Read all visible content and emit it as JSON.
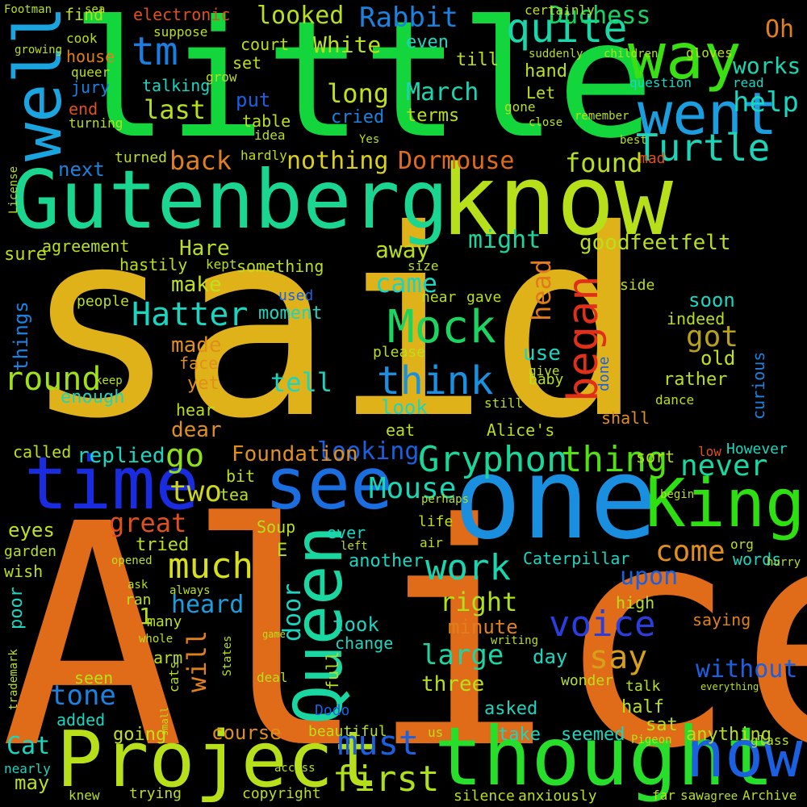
{
  "background": "#000000",
  "words": [
    {
      "text": "said",
      "color": "#e0b21a"
    },
    {
      "text": "Alice",
      "color": "#e06b18"
    },
    {
      "text": "little",
      "color": "#12d63c"
    },
    {
      "text": "one",
      "color": "#1a8fe0"
    },
    {
      "text": "know",
      "color": "#b8e01a"
    },
    {
      "text": "Gutenberg",
      "color": "#1ad690"
    },
    {
      "text": "thought",
      "color": "#27de2a"
    },
    {
      "text": "Project",
      "color": "#b8e01a"
    },
    {
      "text": "time",
      "color": "#1a2ce0"
    },
    {
      "text": "Queen",
      "color": "#1ad6a0"
    },
    {
      "text": "King",
      "color": "#2ee012"
    },
    {
      "text": "see",
      "color": "#1a6ee0"
    },
    {
      "text": "well",
      "color": "#1aa5e0"
    },
    {
      "text": "went",
      "color": "#1a9ee0"
    },
    {
      "text": "way",
      "color": "#3ae012"
    },
    {
      "text": "now",
      "color": "#1a60e0"
    },
    {
      "text": "Mock",
      "color": "#1ad660"
    },
    {
      "text": "began",
      "color": "#e0301a"
    },
    {
      "text": "Turtle",
      "color": "#1ad6b8"
    },
    {
      "text": "Gryphon",
      "color": "#1ad69a"
    },
    {
      "text": "thing",
      "color": "#52e012"
    },
    {
      "text": "think",
      "color": "#1a90e0"
    },
    {
      "text": "Hatter",
      "color": "#1ad6c0"
    },
    {
      "text": "quite",
      "color": "#1ad6a8"
    },
    {
      "text": "much",
      "color": "#d8e01a"
    },
    {
      "text": "voice",
      "color": "#2a3ee0"
    },
    {
      "text": "work",
      "color": "#1ad6b0"
    },
    {
      "text": "must",
      "color": "#1a60e0"
    },
    {
      "text": "first",
      "color": "#aee01a"
    },
    {
      "text": "come",
      "color": "#e0901a"
    },
    {
      "text": "never",
      "color": "#1ad6a0"
    },
    {
      "text": "Mouse",
      "color": "#1ad6b4"
    },
    {
      "text": "tm",
      "color": "#1a7ee0"
    },
    {
      "text": "go",
      "color": "#8ee01a"
    },
    {
      "text": "two",
      "color": "#ced61a"
    },
    {
      "text": "round",
      "color": "#a0e01a"
    },
    {
      "text": "say",
      "color": "#d8a01a"
    },
    {
      "text": "large",
      "color": "#1ad6a4"
    },
    {
      "text": "right",
      "color": "#b0e01a"
    },
    {
      "text": "Duchess",
      "color": "#12d660"
    },
    {
      "text": "Rabbit",
      "color": "#1a82e0"
    },
    {
      "text": "looked",
      "color": "#b8e01a"
    },
    {
      "text": "nothing",
      "color": "#d8d01a"
    },
    {
      "text": "Dormouse",
      "color": "#e06b18"
    },
    {
      "text": "White",
      "color": "#b8e01a"
    },
    {
      "text": "long",
      "color": "#c0e01a"
    },
    {
      "text": "March",
      "color": "#1ad6b0"
    },
    {
      "text": "back",
      "color": "#e0801a"
    },
    {
      "text": "found",
      "color": "#b8e01a"
    },
    {
      "text": "head",
      "color": "#e07a1a"
    },
    {
      "text": "got",
      "color": "#b8a01a"
    },
    {
      "text": "tone",
      "color": "#1a82e0"
    },
    {
      "text": "heard",
      "color": "#1a9ee0"
    },
    {
      "text": "tell",
      "color": "#1ad6c0"
    },
    {
      "text": "came",
      "color": "#1ad6c0"
    },
    {
      "text": "looking",
      "color": "#1a60e0"
    },
    {
      "text": "Foundation",
      "color": "#e0901a"
    },
    {
      "text": "replied",
      "color": "#1ad6c0"
    },
    {
      "text": "great",
      "color": "#e0501a"
    },
    {
      "text": "without",
      "color": "#1a60e0"
    },
    {
      "text": "will",
      "color": "#e0801a"
    },
    {
      "text": "door",
      "color": "#1ad6c0"
    },
    {
      "text": "Cat",
      "color": "#1ad6c0"
    },
    {
      "text": "Oh",
      "color": "#e0801a"
    },
    {
      "text": "works",
      "color": "#1ad6b0"
    },
    {
      "text": "help",
      "color": "#1ad6c0"
    },
    {
      "text": "last",
      "color": "#b8e01a"
    },
    {
      "text": "make",
      "color": "#c0e01a"
    },
    {
      "text": "Hare",
      "color": "#b8e01a"
    },
    {
      "text": "made",
      "color": "#e0901a"
    },
    {
      "text": "dear",
      "color": "#e0901a"
    },
    {
      "text": "might",
      "color": "#1ad6a0"
    },
    {
      "text": "away",
      "color": "#b8e01a"
    },
    {
      "text": "good",
      "color": "#b8e01a"
    },
    {
      "text": "feet",
      "color": "#b8e01a"
    },
    {
      "text": "felt",
      "color": "#b8e01a"
    },
    {
      "text": "soon",
      "color": "#1ad6c0"
    },
    {
      "text": "use",
      "color": "#1ad6c0"
    },
    {
      "text": "old",
      "color": "#c0e01a"
    },
    {
      "text": "upon",
      "color": "#1a60e0"
    },
    {
      "text": "day",
      "color": "#1ad6c0"
    },
    {
      "text": "three",
      "color": "#b8e01a"
    },
    {
      "text": "minute",
      "color": "#e0801a"
    },
    {
      "text": "took",
      "color": "#1ad6c0"
    },
    {
      "text": "course",
      "color": "#e0901a"
    },
    {
      "text": "going",
      "color": "#c0e01a"
    },
    {
      "text": "may",
      "color": "#b8e01a"
    },
    {
      "text": "seemed",
      "color": "#1ad6c0"
    },
    {
      "text": "take",
      "color": "#1ad6c0"
    },
    {
      "text": "half",
      "color": "#b8e01a"
    },
    {
      "text": "sat",
      "color": "#b8e01a"
    },
    {
      "text": "anything",
      "color": "#b8e01a"
    },
    {
      "text": "saying",
      "color": "#e0801a"
    },
    {
      "text": "asked",
      "color": "#1ad6c0"
    },
    {
      "text": "Caterpillar",
      "color": "#1ad6c0"
    },
    {
      "text": "another",
      "color": "#1ad6c0"
    },
    {
      "text": "eyes",
      "color": "#c0e01a"
    },
    {
      "text": "tried",
      "color": "#b8e01a"
    },
    {
      "text": "next",
      "color": "#1a82e0"
    },
    {
      "text": "things",
      "color": "#1a82e0"
    },
    {
      "text": "sure",
      "color": "#b8e01a"
    },
    {
      "text": "people",
      "color": "#b8e01a"
    },
    {
      "text": "moment",
      "color": "#1ad6c0"
    },
    {
      "text": "something",
      "color": "#b8e01a"
    },
    {
      "text": "yet",
      "color": "#e0901a"
    },
    {
      "text": "face",
      "color": "#e0901a"
    },
    {
      "text": "enough",
      "color": "#1ad6c0"
    },
    {
      "text": "hear",
      "color": "#b8e01a"
    },
    {
      "text": "put",
      "color": "#1a60e0"
    },
    {
      "text": "cried",
      "color": "#1a82e0"
    },
    {
      "text": "terms",
      "color": "#b8e01a"
    },
    {
      "text": "even",
      "color": "#1ad6c0"
    },
    {
      "text": "till",
      "color": "#b8e01a"
    },
    {
      "text": "hand",
      "color": "#b8e01a"
    },
    {
      "text": "jury",
      "color": "#1a82e0"
    },
    {
      "text": "talking",
      "color": "#1ad6c0"
    },
    {
      "text": "end",
      "color": "#e0501a"
    },
    {
      "text": "house",
      "color": "#e0801a"
    },
    {
      "text": "find",
      "color": "#b8e01a"
    },
    {
      "text": "electronic",
      "color": "#e0501a"
    },
    {
      "text": "court",
      "color": "#b8e01a"
    },
    {
      "text": "set",
      "color": "#b8e01a"
    },
    {
      "text": "table",
      "color": "#b8e01a"
    },
    {
      "text": "agreement",
      "color": "#b8e01a"
    },
    {
      "text": "hastily",
      "color": "#b8e01a"
    },
    {
      "text": "Soup",
      "color": "#b8e01a"
    },
    {
      "text": "ever",
      "color": "#1ad6c0"
    },
    {
      "text": "life",
      "color": "#b8e01a"
    },
    {
      "text": "gave",
      "color": "#b8e01a"
    },
    {
      "text": "near",
      "color": "#b8e01a"
    },
    {
      "text": "shall",
      "color": "#e0901a"
    },
    {
      "text": "indeed",
      "color": "#b8e01a"
    },
    {
      "text": "rather",
      "color": "#b8e01a"
    },
    {
      "text": "curious",
      "color": "#1a82e0"
    },
    {
      "text": "However",
      "color": "#1ad6c0"
    },
    {
      "text": "sort",
      "color": "#b8e01a"
    },
    {
      "text": "words",
      "color": "#1ad6c0"
    },
    {
      "text": "eat",
      "color": "#b8e01a"
    },
    {
      "text": "Alice's",
      "color": "#b8e01a"
    },
    {
      "text": "bit",
      "color": "#b8e01a"
    },
    {
      "text": "tea",
      "color": "#b8e01a"
    },
    {
      "text": "many",
      "color": "#b8e01a"
    },
    {
      "text": "arm",
      "color": "#b8e01a"
    },
    {
      "text": "seen",
      "color": "#b8e01a"
    },
    {
      "text": "added",
      "color": "#1ad6c0"
    },
    {
      "text": "called",
      "color": "#b8e01a"
    },
    {
      "text": "poor",
      "color": "#1ad6c0"
    },
    {
      "text": "wish",
      "color": "#b8e01a"
    },
    {
      "text": "garden",
      "color": "#b8e01a"
    },
    {
      "text": "change",
      "color": "#1ad6c0"
    },
    {
      "text": "full",
      "color": "#b8e01a"
    },
    {
      "text": "talk",
      "color": "#b8e01a"
    },
    {
      "text": "high",
      "color": "#b8e01a"
    },
    {
      "text": "wonder",
      "color": "#b8e01a"
    },
    {
      "text": "beautiful",
      "color": "#b8e01a"
    },
    {
      "text": "copyright",
      "color": "#b8e01a"
    },
    {
      "text": "trying",
      "color": "#b8e01a"
    },
    {
      "text": "knew",
      "color": "#b8e01a"
    },
    {
      "text": "nearly",
      "color": "#1ad6c0"
    },
    {
      "text": "silence",
      "color": "#b8e01a"
    },
    {
      "text": "anxiously",
      "color": "#b8e01a"
    },
    {
      "text": "far",
      "color": "#b8e01a"
    },
    {
      "text": "saw",
      "color": "#b8e01a"
    },
    {
      "text": "agree",
      "color": "#b8e01a"
    },
    {
      "text": "Archive",
      "color": "#b8e01a"
    },
    {
      "text": "Dodo",
      "color": "#1a60e0"
    },
    {
      "text": "ran",
      "color": "#b8e01a"
    },
    {
      "text": "always",
      "color": "#b8e01a"
    },
    {
      "text": "ask",
      "color": "#b8e01a"
    },
    {
      "text": "1",
      "color": "#b8e01a"
    },
    {
      "text": "E",
      "color": "#b8e01a"
    },
    {
      "text": "baby",
      "color": "#b8e01a"
    },
    {
      "text": "done",
      "color": "#1a60e0"
    },
    {
      "text": "dance",
      "color": "#b8e01a"
    },
    {
      "text": "question",
      "color": "#1ad6c0"
    },
    {
      "text": "side",
      "color": "#b8e01a"
    },
    {
      "text": "mad",
      "color": "#e0501a"
    },
    {
      "text": "best",
      "color": "#b8e01a"
    },
    {
      "text": "remember",
      "color": "#b8e01a"
    },
    {
      "text": "close",
      "color": "#b8e01a"
    },
    {
      "text": "gone",
      "color": "#b8e01a"
    },
    {
      "text": "Let",
      "color": "#b8e01a"
    },
    {
      "text": "read",
      "color": "#1ad6c0"
    },
    {
      "text": "gloves",
      "color": "#b8e01a"
    },
    {
      "text": "children",
      "color": "#b8e01a"
    },
    {
      "text": "suddenly",
      "color": "#b8e01a"
    },
    {
      "text": "certainly",
      "color": "#b8e01a"
    },
    {
      "text": "Footman",
      "color": "#b8e01a"
    },
    {
      "text": "cook",
      "color": "#b8e01a"
    },
    {
      "text": "growing",
      "color": "#b8e01a"
    },
    {
      "text": "queer",
      "color": "#b8e01a"
    },
    {
      "text": "turning",
      "color": "#b8e01a"
    },
    {
      "text": "suppose",
      "color": "#b8e01a"
    },
    {
      "text": "grow",
      "color": "#b8e01a"
    },
    {
      "text": "idea",
      "color": "#b8e01a"
    },
    {
      "text": "turned",
      "color": "#b8e01a"
    },
    {
      "text": "hardly",
      "color": "#b8e01a"
    },
    {
      "text": "kept",
      "color": "#b8e01a"
    },
    {
      "text": "used",
      "color": "#1a60e0"
    },
    {
      "text": "please",
      "color": "#b8e01a"
    },
    {
      "text": "keep",
      "color": "#b8e01a"
    },
    {
      "text": "give",
      "color": "#b8e01a"
    },
    {
      "text": "still",
      "color": "#b8e01a"
    },
    {
      "text": "look",
      "color": "#1ad6c0"
    },
    {
      "text": "size",
      "color": "#b8e01a"
    },
    {
      "text": "low",
      "color": "#e0501a"
    },
    {
      "text": "begin",
      "color": "#b8e01a"
    },
    {
      "text": "org",
      "color": "#b8e01a"
    },
    {
      "text": "air",
      "color": "#b8e01a"
    },
    {
      "text": "left",
      "color": "#b8e01a"
    },
    {
      "text": "perhaps",
      "color": "#b8e01a"
    },
    {
      "text": "us",
      "color": "#b8e01a"
    },
    {
      "text": "deal",
      "color": "#b8e01a"
    },
    {
      "text": "access",
      "color": "#b8e01a"
    },
    {
      "text": "Pigeon",
      "color": "#b8e01a"
    },
    {
      "text": "glass",
      "color": "#b8e01a"
    },
    {
      "text": "everything",
      "color": "#b8e01a"
    },
    {
      "text": "hurry",
      "color": "#b8e01a"
    },
    {
      "text": "States",
      "color": "#b8e01a"
    },
    {
      "text": "cats",
      "color": "#b8e01a"
    },
    {
      "text": "small",
      "color": "#b8e01a"
    },
    {
      "text": "whole",
      "color": "#b8e01a"
    },
    {
      "text": "opened",
      "color": "#b8e01a"
    },
    {
      "text": "game",
      "color": "#b8e01a"
    },
    {
      "text": "writing",
      "color": "#b8e01a"
    },
    {
      "text": "trademark",
      "color": "#b8e01a"
    },
    {
      "text": "License",
      "color": "#b8e01a"
    },
    {
      "text": "Yes",
      "color": "#b8e01a"
    },
    {
      "text": "sea",
      "color": "#b8e01a"
    }
  ]
}
